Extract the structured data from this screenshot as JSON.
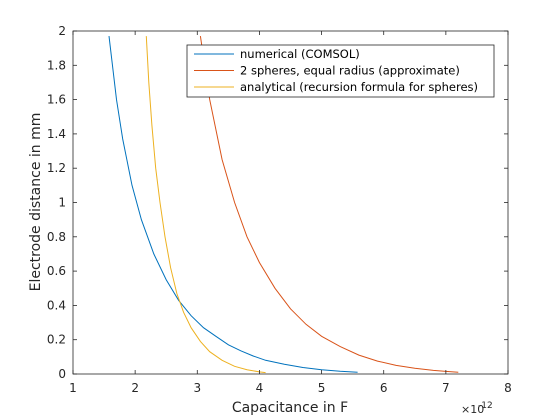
{
  "chart_data": {
    "type": "line",
    "title": "",
    "xlabel": "Capacitance in F",
    "ylabel": "Electrode distance in mm",
    "x_exponent_label": "×10",
    "x_exponent_power": "-12",
    "xlim": [
      1,
      8
    ],
    "ylim": [
      0,
      2
    ],
    "xticks": [
      1,
      2,
      3,
      4,
      5,
      6,
      7,
      8
    ],
    "yticks": [
      0,
      0.2,
      0.4,
      0.6,
      0.8,
      1,
      1.2,
      1.4,
      1.6,
      1.8,
      2
    ],
    "grid": false,
    "legend_position": "top-right",
    "series": [
      {
        "name": "numerical (COMSOL)",
        "color": "#0072BD",
        "x": [
          1.58,
          1.7,
          1.8,
          1.95,
          2.1,
          2.3,
          2.5,
          2.7,
          2.9,
          3.1,
          3.3,
          3.5,
          3.7,
          3.9,
          4.1,
          4.4,
          4.7,
          5.0,
          5.3,
          5.58
        ],
        "y": [
          1.97,
          1.6,
          1.37,
          1.1,
          0.9,
          0.7,
          0.55,
          0.43,
          0.34,
          0.27,
          0.22,
          0.17,
          0.135,
          0.105,
          0.08,
          0.057,
          0.038,
          0.025,
          0.016,
          0.01
        ]
      },
      {
        "name": "2 spheres, equal radius (approximate)",
        "color": "#D95319",
        "x": [
          3.05,
          3.2,
          3.4,
          3.6,
          3.8,
          4.0,
          4.25,
          4.5,
          4.75,
          5.0,
          5.3,
          5.6,
          5.9,
          6.2,
          6.5,
          6.8,
          7.0,
          7.2
        ],
        "y": [
          1.97,
          1.6,
          1.25,
          1.0,
          0.8,
          0.65,
          0.5,
          0.38,
          0.29,
          0.22,
          0.16,
          0.11,
          0.075,
          0.05,
          0.033,
          0.021,
          0.015,
          0.01
        ]
      },
      {
        "name": "analytical (recursion formula for spheres)",
        "color": "#EDB120",
        "x": [
          2.18,
          2.22,
          2.27,
          2.33,
          2.4,
          2.48,
          2.57,
          2.67,
          2.78,
          2.9,
          3.05,
          3.2,
          3.4,
          3.6,
          3.8,
          4.0,
          4.1
        ],
        "y": [
          1.97,
          1.7,
          1.45,
          1.2,
          1.0,
          0.8,
          0.62,
          0.47,
          0.36,
          0.27,
          0.19,
          0.13,
          0.08,
          0.045,
          0.025,
          0.012,
          0.008
        ]
      }
    ]
  }
}
